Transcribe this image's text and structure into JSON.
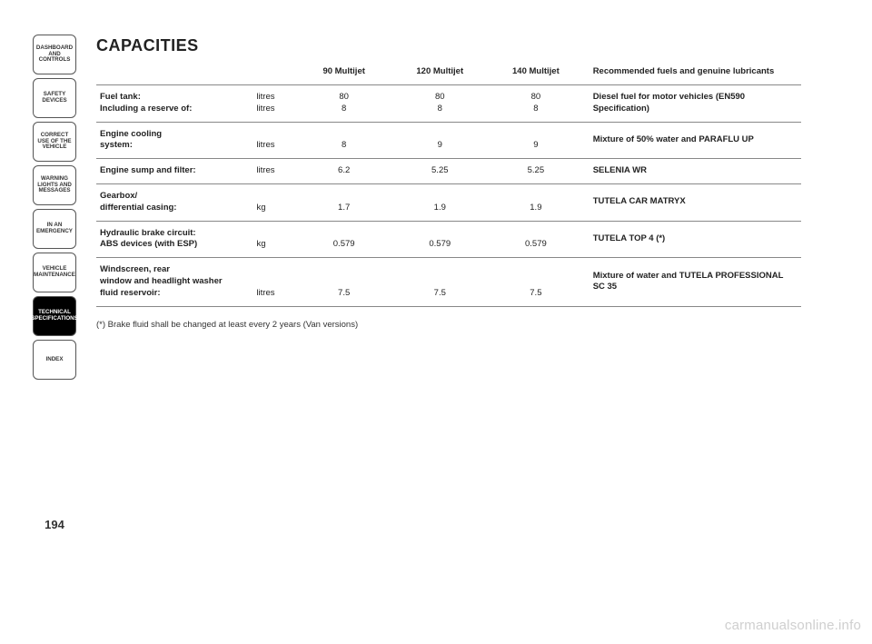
{
  "page_number": "194",
  "title": "CAPACITIES",
  "sidebar_tabs": [
    {
      "label": "DASHBOARD AND CONTROLS",
      "active": false
    },
    {
      "label": "SAFETY DEVICES",
      "active": false
    },
    {
      "label": "CORRECT USE OF THE VEHICLE",
      "active": false
    },
    {
      "label": "WARNING LIGHTS AND MESSAGES",
      "active": false
    },
    {
      "label": "IN AN EMERGENCY",
      "active": false
    },
    {
      "label": "VEHICLE MAINTENANCE",
      "active": false
    },
    {
      "label": "TECHNICAL SPECIFICATIONS",
      "active": true
    },
    {
      "label": "INDEX",
      "active": false
    }
  ],
  "columns": {
    "c1": "90 Multijet",
    "c2": "120 Multijet",
    "c3": "140 Multijet",
    "rec": "Recommended fuels and genuine lubricants"
  },
  "rows": [
    {
      "label_lines": [
        "Fuel tank:",
        "Including a reserve of:"
      ],
      "unit_lines": [
        "litres",
        "litres"
      ],
      "v1_lines": [
        "80",
        "8"
      ],
      "v2_lines": [
        "80",
        "8"
      ],
      "v3_lines": [
        "80",
        "8"
      ],
      "rec": "Diesel fuel for motor vehicles (EN590 Specification)"
    },
    {
      "label_lines": [
        "Engine cooling",
        "system:"
      ],
      "unit_lines": [
        "",
        "litres"
      ],
      "v1_lines": [
        "",
        "8"
      ],
      "v2_lines": [
        "",
        "9"
      ],
      "v3_lines": [
        "",
        "9"
      ],
      "rec": "Mixture of 50% water and PARAFLU UP"
    },
    {
      "label_lines": [
        "Engine sump and filter:"
      ],
      "unit_lines": [
        "litres"
      ],
      "v1_lines": [
        "6.2"
      ],
      "v2_lines": [
        "5.25"
      ],
      "v3_lines": [
        "5.25"
      ],
      "rec": "SELENIA WR"
    },
    {
      "label_lines": [
        "Gearbox/",
        "differential casing:"
      ],
      "unit_lines": [
        "",
        "kg"
      ],
      "v1_lines": [
        "",
        "1.7"
      ],
      "v2_lines": [
        "",
        "1.9"
      ],
      "v3_lines": [
        "",
        "1.9"
      ],
      "rec": "TUTELA CAR MATRYX"
    },
    {
      "label_lines": [
        "Hydraulic brake circuit:",
        "ABS devices (with ESP)"
      ],
      "unit_lines": [
        "",
        "kg"
      ],
      "v1_lines": [
        "",
        "0.579"
      ],
      "v2_lines": [
        "",
        "0.579"
      ],
      "v3_lines": [
        "",
        "0.579"
      ],
      "rec": "TUTELA TOP 4 (*)"
    },
    {
      "label_lines": [
        "Windscreen, rear",
        "window and headlight washer",
        "fluid reservoir:"
      ],
      "unit_lines": [
        "",
        "",
        "litres"
      ],
      "v1_lines": [
        "",
        "",
        "7.5"
      ],
      "v2_lines": [
        "",
        "",
        "7.5"
      ],
      "v3_lines": [
        "",
        "",
        "7.5"
      ],
      "rec": "Mixture of water and TUTELA PROFESSIONAL SC 35"
    }
  ],
  "footnote": "(*) Brake fluid shall be changed at least every 2 years (Van versions)",
  "watermark": "carmanualsonline.info",
  "style": {
    "page_bg": "#ffffff",
    "text_color": "#222222",
    "border_color": "#888888",
    "tab_border": "#555555",
    "tab_active_bg": "#000000",
    "tab_active_fg": "#ffffff",
    "title_fontsize_pt": 14,
    "body_fontsize_pt": 7,
    "watermark_color": "#cfcfcf"
  }
}
